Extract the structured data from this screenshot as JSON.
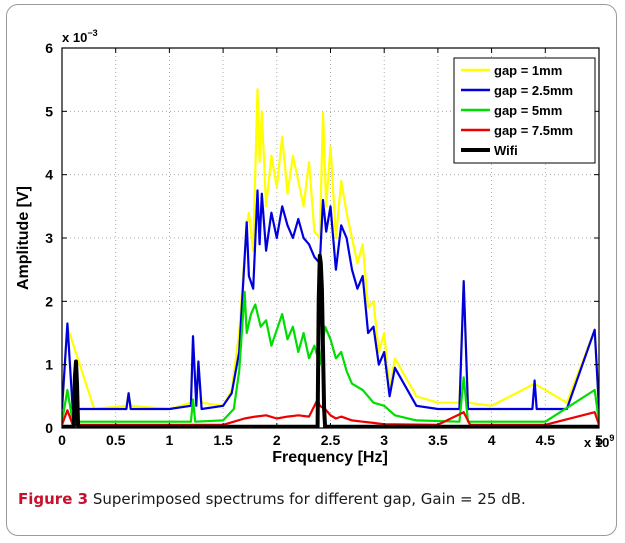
{
  "chart_data": {
    "type": "line",
    "title": "",
    "xlabel": "Frequency [Hz]",
    "ylabel": "Amplitude [V]",
    "x_multiplier": "x 10",
    "x_multiplier_exp": "9",
    "y_multiplier": "x 10",
    "y_multiplier_exp": "−3",
    "xlim": [
      0,
      5
    ],
    "ylim": [
      0,
      6
    ],
    "xticks": [
      0,
      0.5,
      1,
      1.5,
      2,
      2.5,
      3,
      3.5,
      4,
      4.5,
      5
    ],
    "xtick_labels": [
      "0",
      "0.5",
      "1",
      "1.5",
      "2",
      "2.5",
      "3",
      "3.5",
      "4",
      "4.5",
      "5"
    ],
    "yticks": [
      0,
      1,
      2,
      3,
      4,
      5,
      6
    ],
    "ytick_labels": [
      "0",
      "1",
      "2",
      "3",
      "4",
      "5",
      "6"
    ],
    "grid": true,
    "legend_position": "top-right",
    "series": [
      {
        "name": "gap = 1mm",
        "color": "#ffff00",
        "x": [
          0,
          0.05,
          0.3,
          0.6,
          0.62,
          0.64,
          1.0,
          1.2,
          1.22,
          1.25,
          1.27,
          1.3,
          1.5,
          1.58,
          1.65,
          1.72,
          1.74,
          1.78,
          1.82,
          1.84,
          1.86,
          1.9,
          1.95,
          2.0,
          2.05,
          2.1,
          2.15,
          2.2,
          2.25,
          2.3,
          2.35,
          2.4,
          2.43,
          2.46,
          2.5,
          2.55,
          2.6,
          2.65,
          2.7,
          2.75,
          2.8,
          2.85,
          2.9,
          2.95,
          3.0,
          3.05,
          3.1,
          3.3,
          3.5,
          3.7,
          3.74,
          3.78,
          4.0,
          4.4,
          4.7,
          4.96,
          5.0
        ],
        "y": [
          0.25,
          1.6,
          0.3,
          0.35,
          0.55,
          0.35,
          0.3,
          0.4,
          1.3,
          0.45,
          1.0,
          0.4,
          0.35,
          0.6,
          1.5,
          3.2,
          3.4,
          2.8,
          5.35,
          4.2,
          5.0,
          3.5,
          4.3,
          3.8,
          4.6,
          3.7,
          4.3,
          3.9,
          3.5,
          4.2,
          3.1,
          3.0,
          4.98,
          3.5,
          4.45,
          3.0,
          3.9,
          3.4,
          3.0,
          2.6,
          2.9,
          1.9,
          2.0,
          1.2,
          1.5,
          0.6,
          1.1,
          0.5,
          0.4,
          0.4,
          2.3,
          0.4,
          0.35,
          0.7,
          0.4,
          1.55,
          0.3
        ]
      },
      {
        "name": "gap = 2.5mm",
        "color": "#0000dd",
        "x": [
          0,
          0.05,
          0.1,
          0.3,
          0.6,
          0.62,
          0.64,
          1.0,
          1.2,
          1.22,
          1.25,
          1.27,
          1.3,
          1.5,
          1.58,
          1.65,
          1.72,
          1.74,
          1.78,
          1.82,
          1.84,
          1.86,
          1.9,
          1.95,
          2.0,
          2.05,
          2.1,
          2.15,
          2.2,
          2.25,
          2.3,
          2.35,
          2.4,
          2.43,
          2.46,
          2.5,
          2.55,
          2.6,
          2.65,
          2.7,
          2.75,
          2.8,
          2.85,
          2.9,
          2.95,
          3.0,
          3.05,
          3.1,
          3.3,
          3.5,
          3.7,
          3.74,
          3.78,
          4.0,
          4.38,
          4.4,
          4.42,
          4.7,
          4.96,
          5.0
        ],
        "y": [
          0.3,
          1.65,
          0.3,
          0.3,
          0.3,
          0.55,
          0.3,
          0.3,
          0.35,
          1.45,
          0.35,
          1.05,
          0.3,
          0.35,
          0.55,
          1.2,
          3.25,
          2.4,
          2.2,
          3.75,
          2.9,
          3.7,
          2.8,
          3.4,
          3.0,
          3.5,
          3.2,
          3.0,
          3.3,
          3.0,
          2.9,
          2.7,
          2.6,
          3.6,
          3.1,
          3.5,
          2.5,
          3.2,
          3.0,
          2.5,
          2.2,
          2.4,
          1.5,
          1.6,
          1.0,
          1.2,
          0.5,
          0.95,
          0.35,
          0.3,
          0.3,
          2.32,
          0.3,
          0.3,
          0.3,
          0.75,
          0.3,
          0.3,
          1.55,
          0.3
        ]
      },
      {
        "name": "gap = 5mm",
        "color": "#00dd00",
        "x": [
          0,
          0.05,
          0.1,
          0.5,
          1.0,
          1.2,
          1.22,
          1.24,
          1.5,
          1.6,
          1.65,
          1.7,
          1.72,
          1.76,
          1.8,
          1.85,
          1.9,
          1.95,
          2.0,
          2.05,
          2.1,
          2.15,
          2.2,
          2.25,
          2.3,
          2.35,
          2.4,
          2.45,
          2.5,
          2.55,
          2.6,
          2.65,
          2.7,
          2.8,
          2.9,
          3.0,
          3.1,
          3.3,
          3.7,
          3.74,
          3.78,
          4.0,
          4.5,
          4.96,
          5.0
        ],
        "y": [
          0.1,
          0.6,
          0.1,
          0.1,
          0.1,
          0.1,
          0.45,
          0.1,
          0.12,
          0.3,
          0.9,
          2.15,
          1.5,
          1.8,
          1.95,
          1.6,
          1.7,
          1.3,
          1.55,
          1.8,
          1.4,
          1.6,
          1.2,
          1.5,
          1.1,
          1.3,
          1.0,
          1.6,
          1.4,
          1.1,
          1.2,
          0.9,
          0.7,
          0.6,
          0.4,
          0.35,
          0.2,
          0.12,
          0.1,
          0.8,
          0.1,
          0.1,
          0.1,
          0.6,
          0.1
        ]
      },
      {
        "name": "gap = 7.5mm",
        "color": "#ee0000",
        "x": [
          0,
          0.05,
          0.1,
          0.5,
          1.0,
          1.5,
          1.6,
          1.7,
          1.8,
          1.9,
          2.0,
          2.1,
          2.2,
          2.3,
          2.38,
          2.4,
          2.45,
          2.5,
          2.55,
          2.6,
          2.7,
          2.8,
          2.9,
          3.0,
          3.5,
          3.74,
          3.8,
          4.5,
          4.96,
          5.0
        ],
        "y": [
          0.05,
          0.28,
          0.05,
          0.05,
          0.05,
          0.05,
          0.1,
          0.15,
          0.18,
          0.2,
          0.15,
          0.18,
          0.2,
          0.18,
          0.45,
          0.35,
          0.3,
          0.2,
          0.15,
          0.18,
          0.12,
          0.1,
          0.08,
          0.06,
          0.05,
          0.25,
          0.05,
          0.05,
          0.25,
          0.05
        ]
      },
      {
        "name": "Wifi",
        "color": "#000000",
        "width": 4,
        "x": [
          0,
          0.11,
          0.12,
          0.13,
          0.14,
          0.15,
          0.3,
          1.45,
          2.38,
          2.39,
          2.4,
          2.41,
          2.42,
          2.44,
          2.45,
          5.0
        ],
        "y": [
          0.02,
          0.02,
          0.8,
          1.05,
          0.7,
          0.02,
          0.02,
          0.02,
          0.02,
          2.0,
          2.72,
          2.6,
          2.2,
          0.3,
          0.02,
          0.02
        ]
      }
    ]
  },
  "caption": {
    "figure_label": "Figure 3",
    "text": "Superimposed spectrums for different gap, Gain = 25 dB."
  }
}
